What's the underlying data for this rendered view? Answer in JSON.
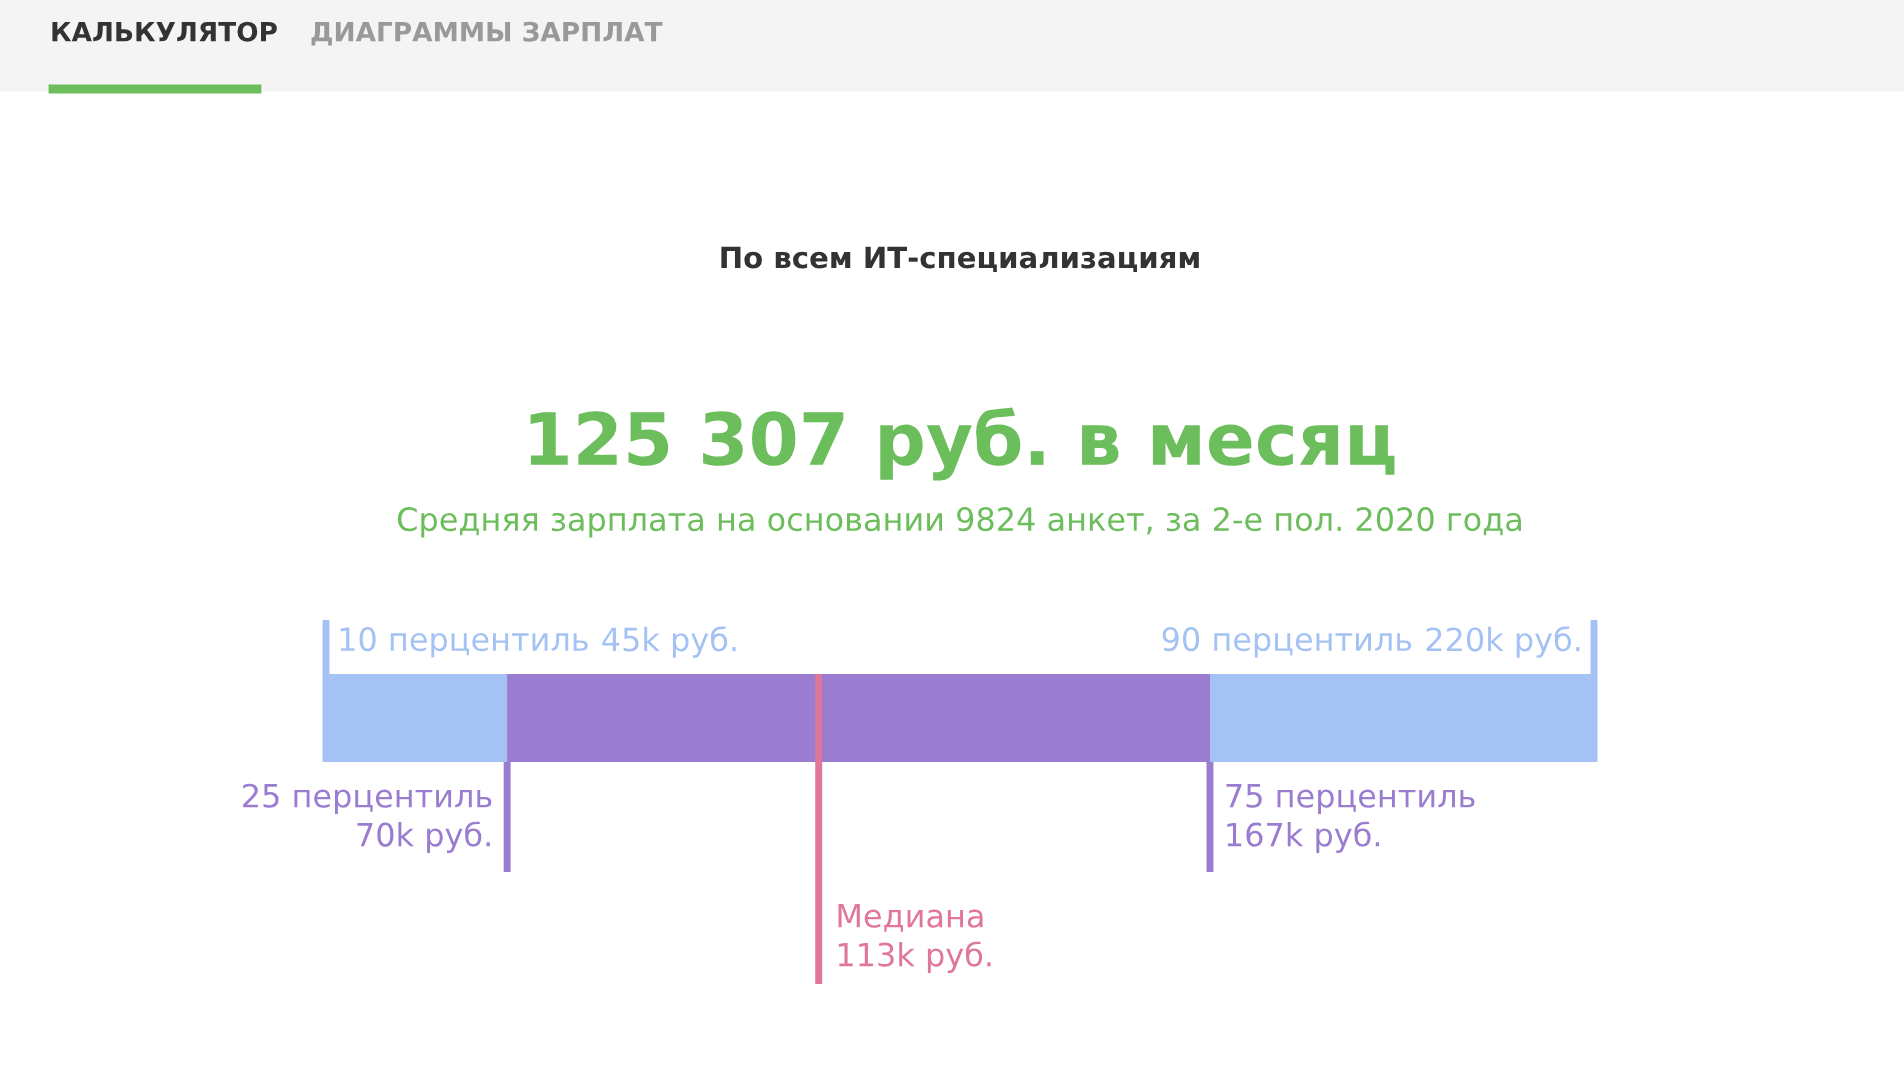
{
  "chart_data": {
    "type": "other",
    "title": "По всем ИТ-специализациям",
    "subtitle": "125 307 руб. в месяц",
    "categories": [
      "10 перцентиль",
      "25 перцентиль",
      "Медиана",
      "75 перцентиль",
      "90 перцентиль"
    ],
    "value_labels": [
      "45k руб.",
      "70k руб.",
      "113k руб.",
      "167k руб.",
      "220k руб."
    ],
    "values": [
      45,
      70,
      113,
      167,
      220
    ],
    "colors": [
      "#a4c2f4",
      "#9a7cd0",
      "#e0779b",
      "#9a7cd0",
      "#a4c2f4"
    ],
    "annotations": [
      "Средняя зарплата на основании 9824 анкет, за 2-е пол. 2020 года",
      "КАЛЬКУЛЯТОР",
      "ДИАГРАММЫ ЗАРПЛАТ"
    ]
  }
}
